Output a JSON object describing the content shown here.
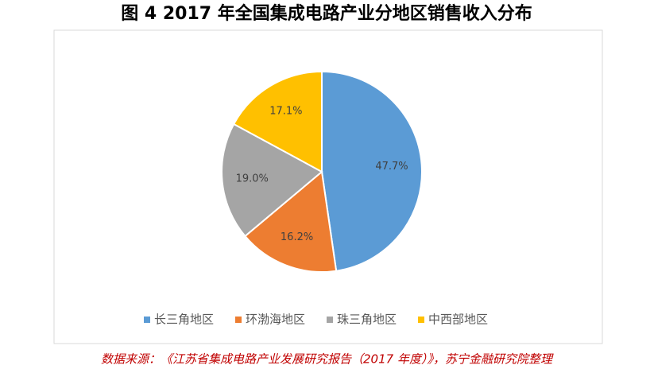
{
  "chart_data": {
    "type": "pie",
    "title": "图 4 2017 年全国集成电路产业分地区销售收入分布",
    "categories": [
      "长三角地区",
      "环渤海地区",
      "珠三角地区",
      "中西部地区"
    ],
    "values": [
      47.7,
      16.2,
      19.0,
      17.1
    ],
    "value_labels": [
      "47.7%",
      "16.2%",
      "19.0%",
      "17.1%"
    ],
    "colors": [
      "#5b9bd5",
      "#ed7d31",
      "#a5a5a5",
      "#ffc000"
    ],
    "legend": "bottom",
    "source": "数据来源：《江苏省集成电路产业发展研究报告（2017 年度）》，苏宁金融研究院整理"
  }
}
